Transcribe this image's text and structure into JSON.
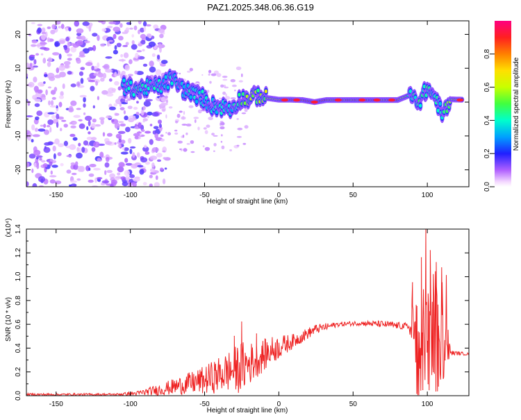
{
  "title": "PAZ1.2025.348.06.36.G19",
  "colors": {
    "line": "#ee2222",
    "background": "#ffffff",
    "axis": "#000000"
  },
  "chart_data": [
    {
      "type": "heatmap",
      "xlabel": "Height of straight line (km)",
      "ylabel": "Frequency (Hz)",
      "xlim": [
        -170,
        128
      ],
      "ylim": [
        -25,
        24
      ],
      "x_ticks": [
        {
          "v": -150,
          "label": "-150"
        },
        {
          "v": -100,
          "label": "-100"
        },
        {
          "v": -50,
          "label": "-50"
        },
        {
          "v": 0,
          "label": "0"
        },
        {
          "v": 50,
          "label": "50"
        },
        {
          "v": 100,
          "label": "100"
        }
      ],
      "y_ticks": [
        {
          "v": 20,
          "label": "20"
        },
        {
          "v": 10,
          "label": "10"
        },
        {
          "v": 0,
          "label": "0"
        },
        {
          "v": -10,
          "label": "-10"
        },
        {
          "v": -20,
          "label": "-20"
        }
      ],
      "colorbar": {
        "label": "Normalized spectral amplitude",
        "range": [
          0,
          1
        ],
        "ticks": [
          {
            "v": 0.0,
            "label": "0.0"
          },
          {
            "v": 0.2,
            "label": "0.2"
          },
          {
            "v": 0.4,
            "label": "0.4"
          },
          {
            "v": 0.6,
            "label": "0.6"
          },
          {
            "v": 0.8,
            "label": "0.8"
          }
        ]
      },
      "ridge": [
        {
          "x": -105,
          "f": 4.5,
          "a": 0.35
        },
        {
          "x": -95,
          "f": 4.0,
          "a": 0.42
        },
        {
          "x": -85,
          "f": 4.5,
          "a": 0.38
        },
        {
          "x": -78,
          "f": 5.0,
          "a": 0.35
        },
        {
          "x": -72,
          "f": 7.0,
          "a": 0.36
        },
        {
          "x": -65,
          "f": 4.0,
          "a": 0.36
        },
        {
          "x": -58,
          "f": 2.5,
          "a": 0.38
        },
        {
          "x": -52,
          "f": 1.5,
          "a": 0.37
        },
        {
          "x": -45,
          "f": -1.0,
          "a": 0.36
        },
        {
          "x": -38,
          "f": -1.5,
          "a": 0.38
        },
        {
          "x": -32,
          "f": -2.0,
          "a": 0.35
        },
        {
          "x": -26,
          "f": 1.0,
          "a": 0.44
        },
        {
          "x": -20,
          "f": 1.0,
          "a": 0.55
        },
        {
          "x": -14,
          "f": 2.0,
          "a": 0.5
        },
        {
          "x": -8,
          "f": 1.2,
          "a": 0.58
        },
        {
          "x": 0,
          "f": 0.7,
          "a": 0.8
        },
        {
          "x": 8,
          "f": 0.7,
          "a": 0.9
        },
        {
          "x": 16,
          "f": 0.6,
          "a": 0.85
        },
        {
          "x": 24,
          "f": 0.0,
          "a": 0.95
        },
        {
          "x": 32,
          "f": 0.6,
          "a": 0.8
        },
        {
          "x": 40,
          "f": 0.6,
          "a": 0.75
        },
        {
          "x": 48,
          "f": 0.6,
          "a": 0.78
        },
        {
          "x": 56,
          "f": 0.6,
          "a": 0.85
        },
        {
          "x": 64,
          "f": 0.6,
          "a": 0.9
        },
        {
          "x": 72,
          "f": 0.6,
          "a": 0.8
        },
        {
          "x": 80,
          "f": 0.6,
          "a": 0.78
        },
        {
          "x": 88,
          "f": 2.0,
          "a": 0.45
        },
        {
          "x": 94,
          "f": 0.0,
          "a": 0.42
        },
        {
          "x": 100,
          "f": 4.0,
          "a": 0.45
        },
        {
          "x": 106,
          "f": 1.0,
          "a": 0.4
        },
        {
          "x": 110,
          "f": -4.0,
          "a": 0.38
        },
        {
          "x": 116,
          "f": 0.8,
          "a": 0.6
        },
        {
          "x": 124,
          "f": 0.7,
          "a": 0.9
        }
      ]
    },
    {
      "type": "line",
      "xlabel": "Height of straight line (km)",
      "ylabel": "SNR (10 * v/v)",
      "yscale_label": "(x10⁴)",
      "xlim": [
        -170,
        128
      ],
      "ylim": [
        0,
        1.4
      ],
      "x_ticks": [
        {
          "v": -150,
          "label": "-150"
        },
        {
          "v": -100,
          "label": "-100"
        },
        {
          "v": -50,
          "label": "-50"
        },
        {
          "v": 0,
          "label": "0"
        },
        {
          "v": 50,
          "label": "50"
        },
        {
          "v": 100,
          "label": "100"
        }
      ],
      "y_ticks": [
        {
          "v": 0.0,
          "label": "0.0"
        },
        {
          "v": 0.2,
          "label": "0.2"
        },
        {
          "v": 0.4,
          "label": "0.4"
        },
        {
          "v": 0.6,
          "label": "0.6"
        },
        {
          "v": 0.8,
          "label": "0.8"
        },
        {
          "v": 1.0,
          "label": "1.0"
        },
        {
          "v": 1.2,
          "label": "1.2"
        },
        {
          "v": 1.4,
          "label": "1.4"
        }
      ],
      "envelope": [
        {
          "x": -170,
          "base": 0.01,
          "noise": 0.01
        },
        {
          "x": -110,
          "base": 0.01,
          "noise": 0.01
        },
        {
          "x": -95,
          "base": 0.02,
          "noise": 0.02
        },
        {
          "x": -80,
          "base": 0.05,
          "noise": 0.05
        },
        {
          "x": -65,
          "base": 0.09,
          "noise": 0.08
        },
        {
          "x": -50,
          "base": 0.13,
          "noise": 0.12
        },
        {
          "x": -35,
          "base": 0.2,
          "noise": 0.17
        },
        {
          "x": -25,
          "base": 0.24,
          "noise": 0.22
        },
        {
          "x": -15,
          "base": 0.3,
          "noise": 0.15
        },
        {
          "x": -5,
          "base": 0.38,
          "noise": 0.12
        },
        {
          "x": 10,
          "base": 0.46,
          "noise": 0.06
        },
        {
          "x": 25,
          "base": 0.56,
          "noise": 0.04
        },
        {
          "x": 40,
          "base": 0.6,
          "noise": 0.02
        },
        {
          "x": 55,
          "base": 0.61,
          "noise": 0.02
        },
        {
          "x": 70,
          "base": 0.6,
          "noise": 0.03
        },
        {
          "x": 88,
          "base": 0.58,
          "noise": 0.03
        },
        {
          "x": 91,
          "base": 0.3,
          "noise": 0.55
        },
        {
          "x": 100,
          "base": 0.4,
          "noise": 0.6
        },
        {
          "x": 110,
          "base": 0.45,
          "noise": 0.35
        },
        {
          "x": 116,
          "base": 0.36,
          "noise": 0.02
        },
        {
          "x": 128,
          "base": 0.35,
          "noise": 0.01
        }
      ],
      "peaks": [
        {
          "x": -25,
          "y": 0.62
        },
        {
          "x": -30,
          "y": 0.5
        },
        {
          "x": -15,
          "y": 0.52
        },
        {
          "x": 90,
          "y": 0.95
        },
        {
          "x": 93,
          "y": 0.75
        },
        {
          "x": 96,
          "y": 1.16
        },
        {
          "x": 97,
          "y": 0.05
        },
        {
          "x": 99,
          "y": 1.42
        },
        {
          "x": 100.5,
          "y": 0.1
        },
        {
          "x": 102,
          "y": 1.22
        },
        {
          "x": 104,
          "y": 0.2
        },
        {
          "x": 106,
          "y": 1.12
        },
        {
          "x": 107.5,
          "y": 0.08
        },
        {
          "x": 110,
          "y": 0.95
        },
        {
          "x": 112,
          "y": 0.3
        },
        {
          "x": 114,
          "y": 0.55
        }
      ]
    }
  ]
}
